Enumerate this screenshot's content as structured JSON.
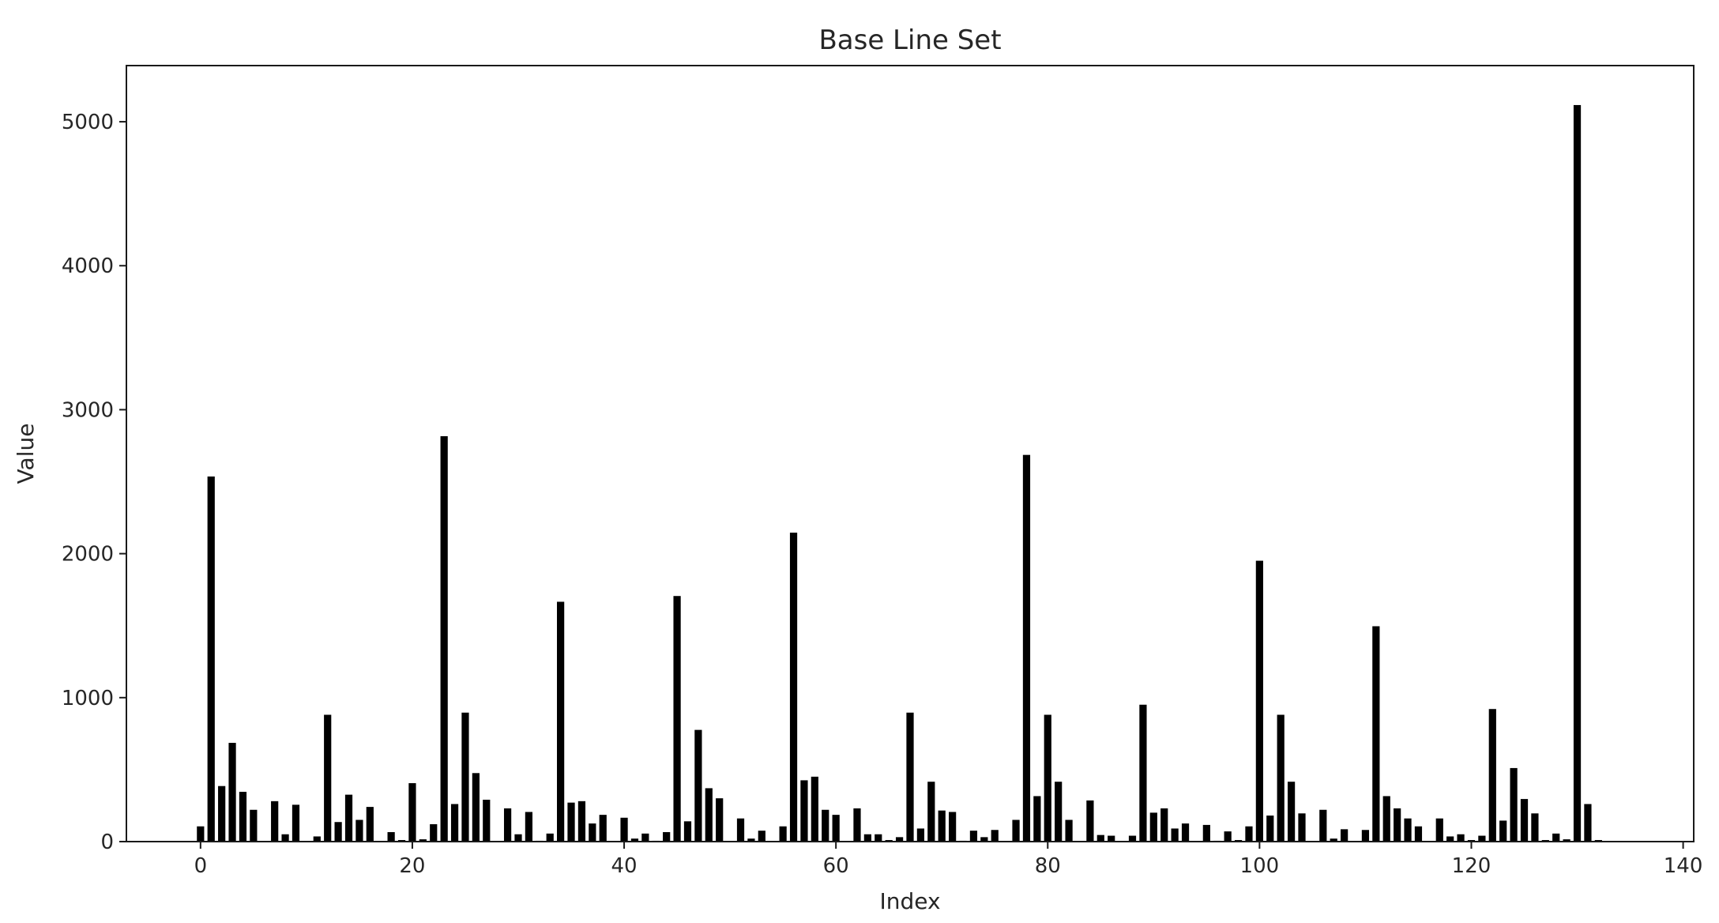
{
  "chart_data": {
    "type": "bar",
    "title": "Base Line Set",
    "xlabel": "Index",
    "ylabel": "Value",
    "xlim": [
      -7,
      141
    ],
    "ylim": [
      0,
      5390
    ],
    "xticks": [
      0,
      20,
      40,
      60,
      80,
      100,
      120,
      140
    ],
    "yticks": [
      0,
      1000,
      2000,
      3000,
      4000,
      5000
    ],
    "grid": false,
    "legend": "none",
    "bar_color": "#000000",
    "x": [
      0,
      1,
      2,
      3,
      4,
      5,
      6,
      7,
      8,
      9,
      10,
      11,
      12,
      13,
      14,
      15,
      16,
      17,
      18,
      19,
      20,
      21,
      22,
      23,
      24,
      25,
      26,
      27,
      28,
      29,
      30,
      31,
      32,
      33,
      34,
      35,
      36,
      37,
      38,
      39,
      40,
      41,
      42,
      43,
      44,
      45,
      46,
      47,
      48,
      49,
      50,
      51,
      52,
      53,
      54,
      55,
      56,
      57,
      58,
      59,
      60,
      61,
      62,
      63,
      64,
      65,
      66,
      67,
      68,
      69,
      70,
      71,
      72,
      73,
      74,
      75,
      76,
      77,
      78,
      79,
      80,
      81,
      82,
      83,
      84,
      85,
      86,
      87,
      88,
      89,
      90,
      91,
      92,
      93,
      94,
      95,
      96,
      97,
      98,
      99,
      100,
      101,
      102,
      103,
      104,
      105,
      106,
      107,
      108,
      109,
      110,
      111,
      112,
      113,
      114,
      115,
      116,
      117,
      118,
      119,
      120,
      121,
      122,
      123,
      124,
      125,
      126,
      127,
      128,
      129,
      130,
      131,
      132
    ],
    "values": [
      110,
      2540,
      390,
      690,
      350,
      225,
      0,
      285,
      55,
      260,
      0,
      40,
      885,
      140,
      330,
      155,
      245,
      0,
      70,
      15,
      410,
      20,
      125,
      2820,
      265,
      900,
      480,
      295,
      0,
      235,
      55,
      210,
      10,
      60,
      1670,
      275,
      285,
      130,
      190,
      0,
      170,
      25,
      60,
      10,
      70,
      1710,
      145,
      780,
      375,
      305,
      0,
      165,
      25,
      80,
      0,
      110,
      2150,
      430,
      455,
      225,
      190,
      0,
      235,
      55,
      55,
      15,
      35,
      900,
      95,
      420,
      220,
      210,
      10,
      80,
      35,
      85,
      0,
      155,
      2690,
      320,
      885,
      420,
      155,
      0,
      290,
      50,
      45,
      0,
      45,
      955,
      205,
      235,
      95,
      130,
      0,
      120,
      10,
      75,
      15,
      110,
      1955,
      185,
      885,
      420,
      200,
      0,
      225,
      25,
      90,
      0,
      85,
      1500,
      320,
      235,
      165,
      110,
      0,
      165,
      40,
      55,
      15,
      45,
      925,
      150,
      515,
      300,
      200,
      15,
      60,
      20,
      5120,
      265,
      15
    ]
  }
}
